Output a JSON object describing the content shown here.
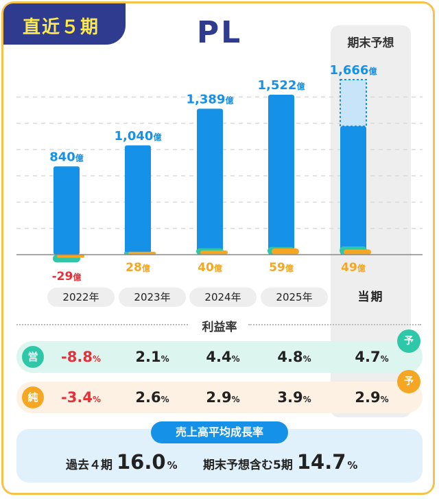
{
  "badge": "直近５期",
  "title": "PL",
  "forecast_header": "期末予想",
  "current_label": "当期",
  "chart_data": {
    "type": "bar",
    "unit": "億",
    "categories": [
      "2022年",
      "2023年",
      "2024年",
      "2025年",
      "当期"
    ],
    "revenue": [
      840,
      1040,
      1389,
      1522,
      1666
    ],
    "revenue_labels": [
      "840",
      "1,040",
      "1,389",
      "1,522",
      "1,666"
    ],
    "operating_profit": [
      -74,
      21,
      61,
      73,
      78
    ],
    "net_profit": [
      -29,
      28,
      40,
      59,
      49
    ],
    "net_labels": [
      "-29",
      "28",
      "40",
      "59",
      "49"
    ],
    "forecast_index": 4,
    "ylim": [
      -120,
      1750
    ],
    "grid": true,
    "colors": {
      "revenue": "#1591e8",
      "revenue_forecast": "#c7e4f8",
      "operating": "#2ec7a7",
      "net": "#f5a623",
      "negative": "#e5303a"
    }
  },
  "profit_rate": {
    "title": "利益率",
    "operating": {
      "icon": "営",
      "values": [
        "-8.8",
        "2.1",
        "4.4",
        "4.8",
        "4.7"
      ],
      "forecast_badge": "予"
    },
    "net": {
      "icon": "純",
      "values": [
        "-3.4",
        "2.6",
        "2.9",
        "3.9",
        "2.9"
      ],
      "forecast_badge": "予"
    },
    "unit": "%"
  },
  "growth": {
    "title": "売上高平均成長率",
    "past_label": "過去４期",
    "past_value": "16.0",
    "forecast_label": "期末予想含む5期",
    "forecast_value": "14.7",
    "unit": "%"
  }
}
